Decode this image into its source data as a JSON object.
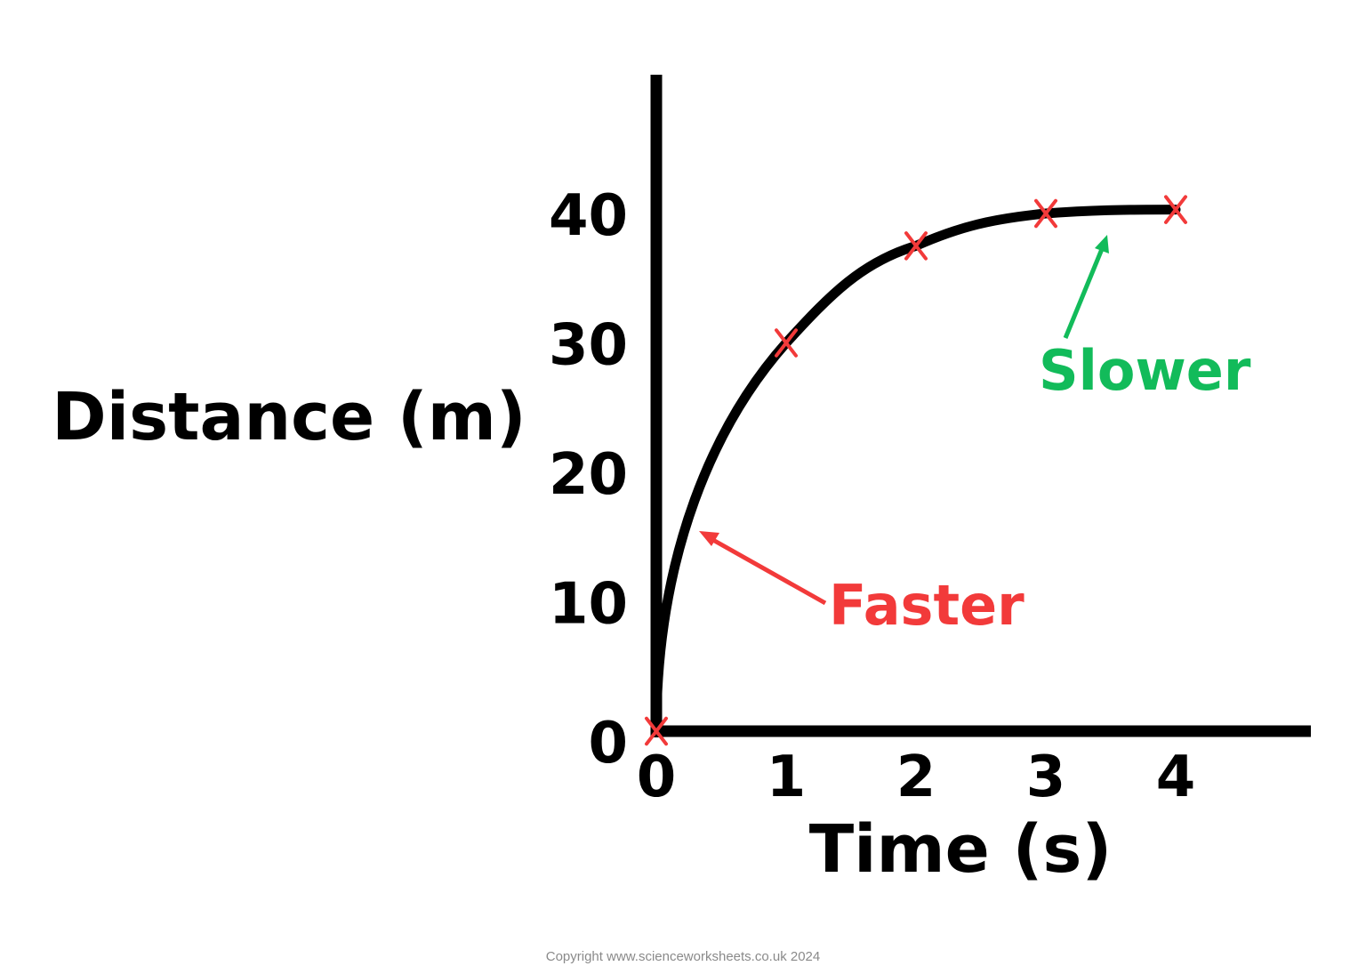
{
  "chart_data": {
    "type": "line",
    "xlabel": "Time (s)",
    "ylabel": "Distance (m)",
    "xlim": [
      0,
      5
    ],
    "ylim": [
      0,
      50
    ],
    "x_ticks": [
      "0",
      "1",
      "2",
      "3",
      "4"
    ],
    "y_ticks": [
      "0",
      "10",
      "20",
      "30",
      "40"
    ],
    "grid": false,
    "series": [
      {
        "points": [
          {
            "x": 0,
            "y": 0
          },
          {
            "x": 1,
            "y": 30
          },
          {
            "x": 2,
            "y": 37.5
          },
          {
            "x": 3,
            "y": 40
          },
          {
            "x": 4,
            "y": 40.3
          }
        ]
      }
    ],
    "annotations": [
      {
        "text": "Faster",
        "color": "#f23a3a",
        "points_to": {
          "x": 0.35,
          "y": 15.5
        }
      },
      {
        "text": "Slower",
        "color": "#12bb5a",
        "points_to": {
          "x": 3.45,
          "y": 38.8
        }
      }
    ],
    "line_color": "#000000",
    "marker_color": "#f23a3a",
    "marker": "x"
  },
  "footer": {
    "copyright": "Copyright www.scienceworksheets.co.uk 2024"
  }
}
